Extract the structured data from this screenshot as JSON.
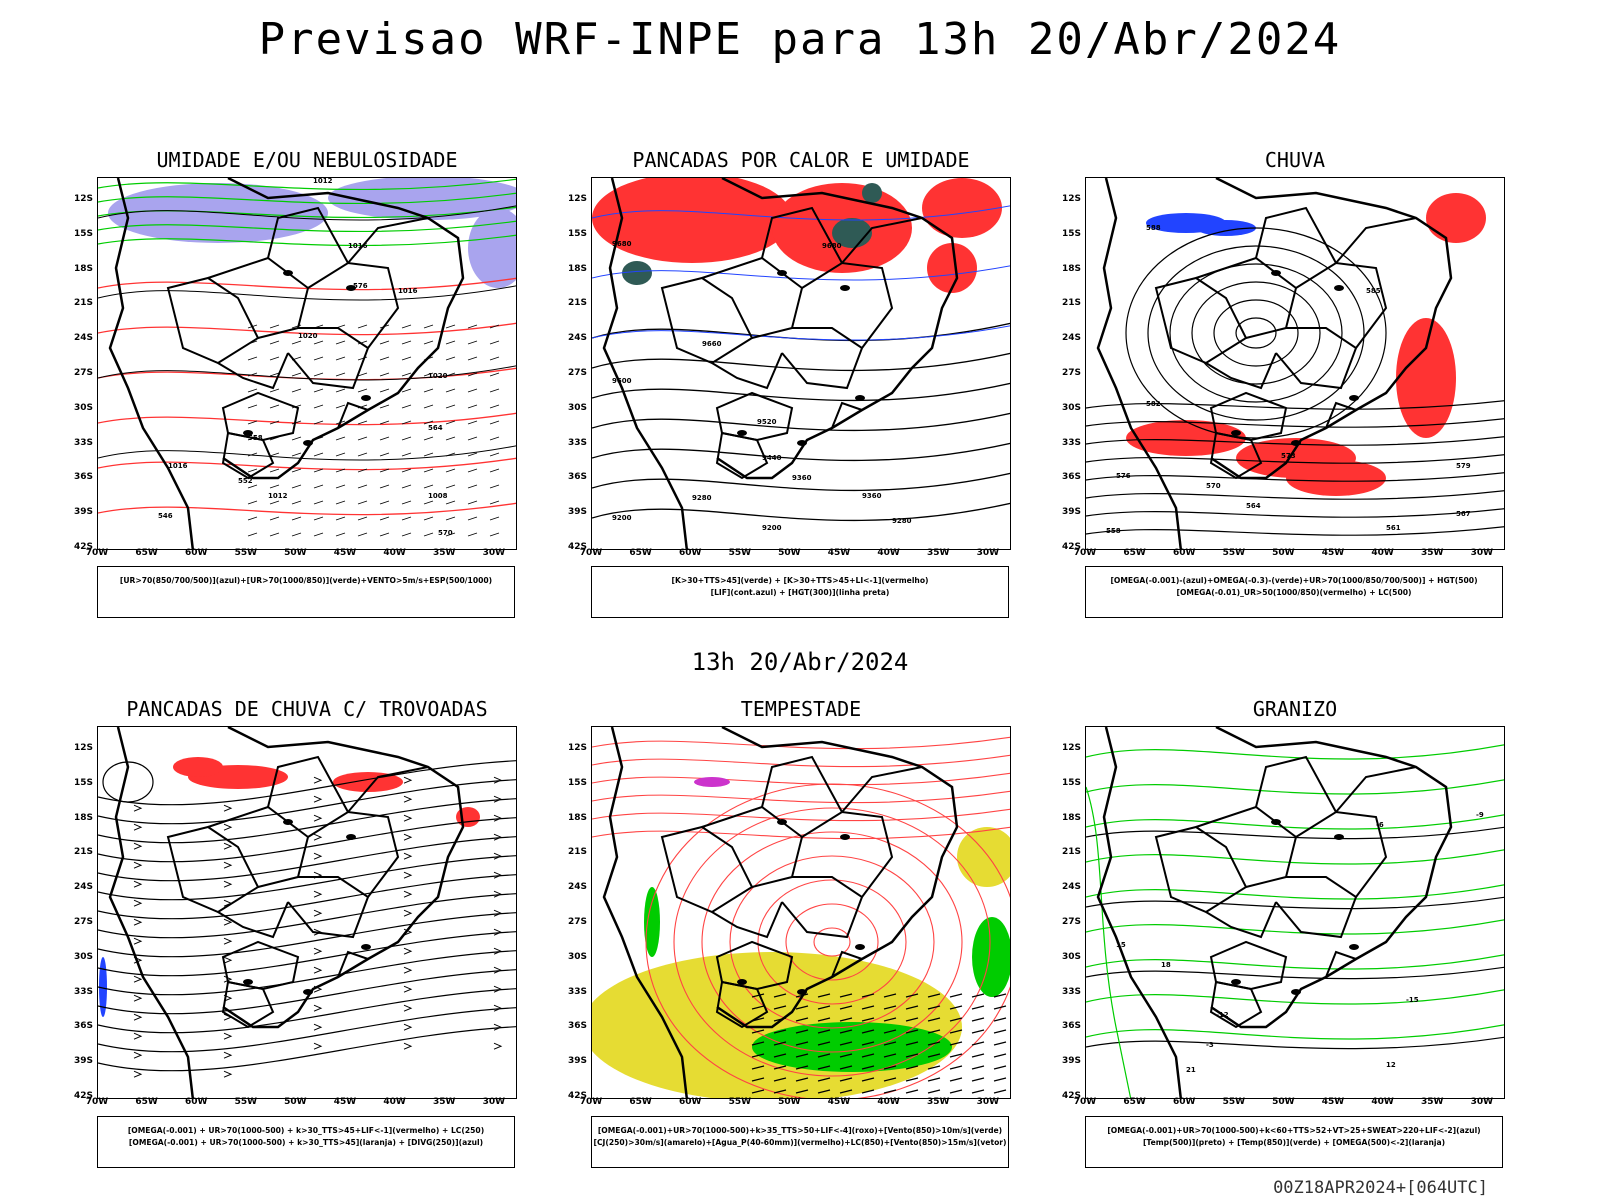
{
  "title": "Previsao WRF-INPE  para 13h 20/Abr/2024",
  "mid_date": "13h 20/Abr/2024",
  "footer": "00Z18APR2024+[064UTC]",
  "latitudes": [
    "12S",
    "15S",
    "18S",
    "21S",
    "24S",
    "27S",
    "30S",
    "33S",
    "36S",
    "39S",
    "42S"
  ],
  "longitudes": [
    "70W",
    "65W",
    "60W",
    "55W",
    "50W",
    "45W",
    "40W",
    "35W",
    "30W"
  ],
  "panels": [
    {
      "title": "UMIDADE E/OU NEBULOSIDADE",
      "legend": [
        "[UR>70(850/700/500)](azul)+[UR>70(1000/850)](verde)+VENTO>5m/s+ESP(500/1000)"
      ]
    },
    {
      "title": "PANCADAS POR CALOR E UMIDADE",
      "legend": [
        "[K>30+TTS>45](verde) + [K>30+TTS>45+LI<-1](vermelho)",
        "[LIF](cont.azul) + [HGT(300)](linha preta)"
      ]
    },
    {
      "title": "CHUVA",
      "legend": [
        "[OMEGA(-0.001)-(azul)+OMEGA(-0.3)-(verde)+UR>70(1000/850/700/500)] + HGT(500)",
        "[OMEGA(-0.01)_UR>50(1000/850)(vermelho) + LC(500)"
      ]
    },
    {
      "title": "PANCADAS DE CHUVA C/ TROVOADAS",
      "legend": [
        "[OMEGA(-0.001) + UR>70(1000-500) + k>30_TTS>45+LIF<-1](vermelho) + LC(250)",
        "[OMEGA(-0.001) + UR>70(1000-500) + k>30_TTS>45](laranja) + [DIVG(250)](azul)"
      ]
    },
    {
      "title": "TEMPESTADE",
      "legend": [
        "[OMEGA(-0.001)+UR>70(1000-500)+k>35_TTS>50+LIF<-4](roxo)+[Vento(850)>10m/s](verde)",
        "[CJ(250)>30m/s](amarelo)+[Agua_P(40-60mm)](vermelho)+LC(850)+[Vento(850)>15m/s](vetor)"
      ]
    },
    {
      "title": "GRANIZO",
      "legend": [
        "[OMEGA(-0.001)+UR>70(1000-500)+k<60+TTS>52+VT>25+SWEAT>220+LIF<-2](azul)",
        "[Temp(500)](preto) + [Temp(850)](verde) + [OMEGA(500)<-2](laranja)"
      ]
    }
  ],
  "contour_labels": {
    "p1": [
      "1012",
      "1016",
      "1016",
      "1020",
      "1020",
      "1016",
      "1012",
      "1008",
      "570",
      "564",
      "558",
      "552",
      "546",
      "576"
    ],
    "p2": [
      "9680",
      "9680",
      "9660",
      "9600",
      "9520",
      "9440",
      "9360",
      "9280",
      "9200",
      "9360",
      "9280",
      "9200"
    ],
    "p3": [
      "588",
      "585",
      "582",
      "579",
      "576",
      "573",
      "570",
      "567",
      "564",
      "561",
      "558"
    ],
    "p6": [
      "-6",
      "-9",
      "-12",
      "-15",
      "-3",
      "12",
      "15",
      "18",
      "21"
    ]
  },
  "colors": {
    "blue_shade": "#a9a4ee",
    "green": "#00cc00",
    "red": "#ff3333",
    "yellow": "#e6dc33",
    "purple": "#cc33cc",
    "blue": "#2244ff",
    "dark_teal": "#2f5a55"
  }
}
